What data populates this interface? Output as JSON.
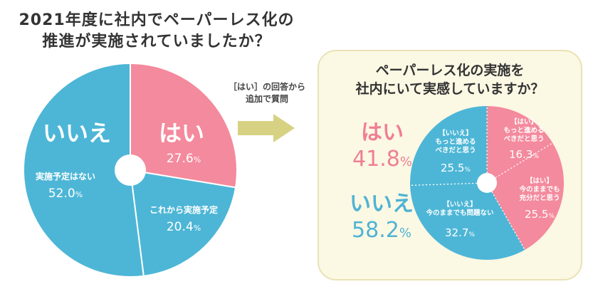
{
  "left_title": {
    "line1": "2021年度に社内でペーパーレス化の",
    "line2": "推進が実施されていましたか？"
  },
  "arrow_note": {
    "line1": "［はい］の回答から",
    "line2": "追加で質問"
  },
  "right_title": {
    "line1": "ペーパーレス化の実施を",
    "line2": "社内にいて実感していますか？"
  },
  "summary": {
    "yes_label": "はい",
    "yes_value": "41.8",
    "no_label": "いいえ",
    "no_value": "58.2",
    "unit": "%"
  },
  "colors": {
    "pink": "#f48a9d",
    "blue": "#4db6d6",
    "pink_text": "#ef7f95",
    "blue_text": "#4fb3d4",
    "arrow": "#d7d283"
  },
  "chart_data": [
    {
      "type": "pie",
      "title": "2021年度に社内でペーパーレス化の推進が実施されていましたか？",
      "group_labels": {
        "yes": "はい",
        "no": "いいえ"
      },
      "slices": [
        {
          "group": "yes",
          "label": "",
          "value": 27.6,
          "value_text": "27.6",
          "color": "#f48a9d"
        },
        {
          "group": "no",
          "label": "これから実施予定",
          "value": 20.4,
          "value_text": "20.4",
          "color": "#4db6d6"
        },
        {
          "group": "no",
          "label": "実施予定はない",
          "value": 52.0,
          "value_text": "52.0",
          "color": "#4db6d6"
        }
      ]
    },
    {
      "type": "pie",
      "title": "ペーパーレス化の実施を社内にいて実感していますか？",
      "slices": [
        {
          "label_lines": [
            "【はい】",
            "もっと進める",
            "べきだと思う"
          ],
          "value": 16.3,
          "value_text": "16.3",
          "color": "#f48a9d"
        },
        {
          "label_lines": [
            "【はい】",
            "今のままでも",
            "充分だと思う"
          ],
          "value": 25.5,
          "value_text": "25.5",
          "color": "#f48a9d"
        },
        {
          "label_lines": [
            "【いいえ】",
            "今のままでも問題ない"
          ],
          "value": 32.7,
          "value_text": "32.7",
          "color": "#4db6d6"
        },
        {
          "label_lines": [
            "【いいえ】",
            "もっと進める",
            "べきだと思う"
          ],
          "value": 25.5,
          "value_text": "25.5",
          "color": "#4db6d6"
        }
      ]
    }
  ]
}
